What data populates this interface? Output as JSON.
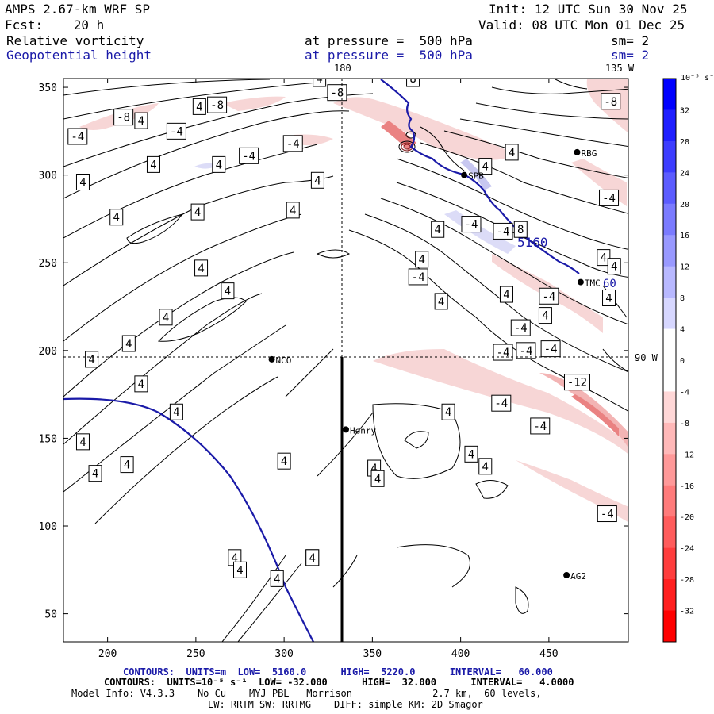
{
  "header": {
    "model": "AMPS 2.67-km WRF SP",
    "init": "Init: 12 UTC Sun 30 Nov 25",
    "forecast": "Fcst:    20 h",
    "valid": "Valid: 08 UTC Mon 01 Dec 25",
    "field1_name": "Relative vorticity",
    "field1_level": "at pressure =  500 hPa",
    "field1_sm": "sm= 2",
    "field2_name": "Geopotential height",
    "field2_level": "at pressure =  500 hPa",
    "field2_sm": "sm= 2"
  },
  "colors": {
    "height_contour": "#1a1aa8",
    "positive_max": "#0000ff",
    "negative_max": "#ff0000"
  },
  "chart_data": {
    "type": "contour",
    "title": "Relative vorticity and Geopotential height at 500 hPa",
    "x_ticks": [
      200,
      250,
      300,
      350,
      400,
      450
    ],
    "y_ticks": [
      50,
      100,
      150,
      200,
      250,
      300,
      350
    ],
    "xlim": [
      175,
      495
    ],
    "ylim": [
      34,
      355
    ],
    "grid_labels": {
      "lon_top_1": "180",
      "lon_top_2": "135 W",
      "lon_right": "90 W"
    },
    "stations": [
      {
        "name": "NCO",
        "x": 293,
        "y": 195
      },
      {
        "name": "Henry",
        "x": 335,
        "y": 155
      },
      {
        "name": "AG2",
        "x": 460,
        "y": 72
      },
      {
        "name": "RBG",
        "x": 466,
        "y": 313
      },
      {
        "name": "SPB",
        "x": 402,
        "y": 300
      },
      {
        "name": "TMC",
        "x": 468,
        "y": 239
      }
    ],
    "height_contours": [
      {
        "value": 5160,
        "label": "5160"
      },
      {
        "value": 5160,
        "label": "60"
      }
    ],
    "vorticity_labels": [
      {
        "v": "4",
        "x": 252,
        "y": 339
      },
      {
        "v": "4",
        "x": 219,
        "y": 331
      },
      {
        "v": "-8",
        "x": 262,
        "y": 340
      },
      {
        "v": "-8",
        "x": 209,
        "y": 333
      },
      {
        "v": "-4",
        "x": 183,
        "y": 322
      },
      {
        "v": "-4",
        "x": 239,
        "y": 325
      },
      {
        "v": "4",
        "x": 226,
        "y": 306
      },
      {
        "v": "4",
        "x": 263,
        "y": 306
      },
      {
        "v": "4",
        "x": 186,
        "y": 296
      },
      {
        "v": "-4",
        "x": 280,
        "y": 311
      },
      {
        "v": "-4",
        "x": 305,
        "y": 318
      },
      {
        "v": "4",
        "x": 319,
        "y": 297
      },
      {
        "v": "4",
        "x": 205,
        "y": 276
      },
      {
        "v": "4",
        "x": 251,
        "y": 279
      },
      {
        "v": "4",
        "x": 305,
        "y": 280
      },
      {
        "v": "4",
        "x": 253,
        "y": 247
      },
      {
        "v": "4",
        "x": 268,
        "y": 234
      },
      {
        "v": "4",
        "x": 233,
        "y": 219
      },
      {
        "v": "4",
        "x": 212,
        "y": 204
      },
      {
        "v": "4",
        "x": 191,
        "y": 195
      },
      {
        "v": "4",
        "x": 219,
        "y": 181
      },
      {
        "v": "4",
        "x": 239,
        "y": 165
      },
      {
        "v": "4",
        "x": 186,
        "y": 148
      },
      {
        "v": "4",
        "x": 211,
        "y": 135
      },
      {
        "v": "4",
        "x": 193,
        "y": 130
      },
      {
        "v": "4",
        "x": 320,
        "y": 355
      },
      {
        "v": "8",
        "x": 373,
        "y": 355
      },
      {
        "v": "-8",
        "x": 330,
        "y": 347
      },
      {
        "v": "4",
        "x": 414,
        "y": 305
      },
      {
        "v": "4",
        "x": 429,
        "y": 313
      },
      {
        "v": "4",
        "x": 387,
        "y": 269
      },
      {
        "v": "-4",
        "x": 406,
        "y": 272
      },
      {
        "v": "-4",
        "x": 424,
        "y": 268
      },
      {
        "v": "4",
        "x": 378,
        "y": 252
      },
      {
        "v": "-4",
        "x": 376,
        "y": 242
      },
      {
        "v": "4",
        "x": 389,
        "y": 228
      },
      {
        "v": "4",
        "x": 426,
        "y": 232
      },
      {
        "v": "-4",
        "x": 450,
        "y": 231
      },
      {
        "v": "4",
        "x": 448,
        "y": 220
      },
      {
        "v": "-4",
        "x": 434,
        "y": 213
      },
      {
        "v": "-4",
        "x": 451,
        "y": 201
      },
      {
        "v": "-4",
        "x": 424,
        "y": 199
      },
      {
        "v": "-12",
        "x": 466,
        "y": 182
      },
      {
        "v": "-4",
        "x": 423,
        "y": 170
      },
      {
        "v": "-4",
        "x": 445,
        "y": 157
      },
      {
        "v": "4",
        "x": 393,
        "y": 165
      },
      {
        "v": "4",
        "x": 406,
        "y": 141
      },
      {
        "v": "4",
        "x": 414,
        "y": 134
      },
      {
        "v": "-4",
        "x": 483,
        "y": 107
      },
      {
        "v": "-4",
        "x": 484,
        "y": 287
      },
      {
        "v": "-8",
        "x": 485,
        "y": 342
      },
      {
        "v": "8",
        "x": 434,
        "y": 269
      },
      {
        "v": "4",
        "x": 481,
        "y": 253
      },
      {
        "v": "4",
        "x": 487,
        "y": 248
      },
      {
        "v": "4",
        "x": 484,
        "y": 230
      },
      {
        "v": "-4",
        "x": 437,
        "y": 200
      },
      {
        "v": "4",
        "x": 351,
        "y": 133
      },
      {
        "v": "4",
        "x": 353,
        "y": 127
      },
      {
        "v": "4",
        "x": 272,
        "y": 82
      },
      {
        "v": "4",
        "x": 275,
        "y": 75
      },
      {
        "v": "4",
        "x": 300,
        "y": 137
      },
      {
        "v": "4",
        "x": 316,
        "y": 82
      },
      {
        "v": "4",
        "x": 316,
        "y": 82
      },
      {
        "v": "4",
        "x": 296,
        "y": 70
      }
    ],
    "colorbar": {
      "unit": "10⁻⁵ s⁻¹",
      "min": -36,
      "max": 36,
      "interval": 4,
      "ticks": [
        32,
        28,
        24,
        20,
        16,
        12,
        8,
        4,
        0,
        -4,
        -8,
        -12,
        -16,
        -20,
        -24,
        -28,
        -32
      ]
    }
  },
  "footer": {
    "contours_height": "CONTOURS:  UNITS=m  LOW=  5160.0      HIGH=  5220.0      INTERVAL=   60.000",
    "contours_vort": "CONTOURS:  UNITS=10⁻⁵ s⁻¹  LOW= -32.000      HIGH=  32.000      INTERVAL=   4.0000",
    "model_info": "Model Info: V4.3.3    No Cu    MYJ PBL   Morrison              2.7 km,  60 levels,",
    "model_info2": "LW: RRTM SW: RRTMG    DIFF: simple KM: 2D Smagor"
  }
}
